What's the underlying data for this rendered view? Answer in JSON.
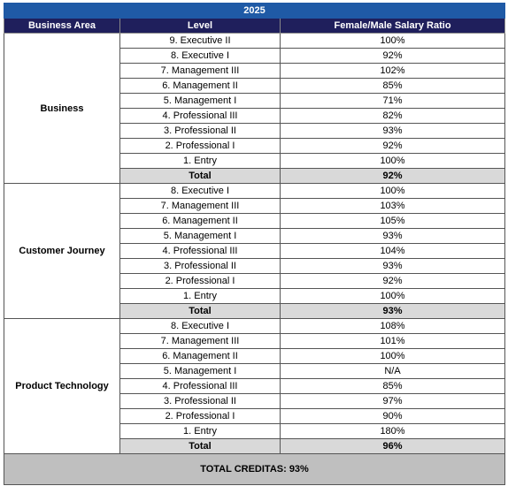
{
  "title": "2025",
  "headers": [
    "Business Area",
    "Level",
    "Female/Male Salary Ratio"
  ],
  "groups": [
    {
      "area": "Business",
      "rows": [
        [
          "9. Executive II",
          "100%"
        ],
        [
          "8. Executive I",
          "92%"
        ],
        [
          "7. Management III",
          "102%"
        ],
        [
          "6. Management II",
          "85%"
        ],
        [
          "5. Management I",
          "71%"
        ],
        [
          "4. Professional III",
          "82%"
        ],
        [
          "3. Professional II",
          "93%"
        ],
        [
          "2. Professional I",
          "92%"
        ],
        [
          "1. Entry",
          "100%"
        ]
      ],
      "total": [
        "Total",
        "92%"
      ]
    },
    {
      "area": "Customer Journey",
      "rows": [
        [
          "8. Executive I",
          "100%"
        ],
        [
          "7. Management III",
          "103%"
        ],
        [
          "6. Management II",
          "105%"
        ],
        [
          "5. Management I",
          "93%"
        ],
        [
          "4. Professional III",
          "104%"
        ],
        [
          "3. Professional II",
          "93%"
        ],
        [
          "2. Professional I",
          "92%"
        ],
        [
          "1. Entry",
          "100%"
        ]
      ],
      "total": [
        "Total",
        "93%"
      ]
    },
    {
      "area": "Product Technology",
      "rows": [
        [
          "8. Executive I",
          "108%"
        ],
        [
          "7. Management III",
          "101%"
        ],
        [
          "6. Management II",
          "100%"
        ],
        [
          "5. Management I",
          "N/A"
        ],
        [
          "4. Professional III",
          "85%"
        ],
        [
          "3. Professional II",
          "97%"
        ],
        [
          "2. Professional I",
          "90%"
        ],
        [
          "1. Entry",
          "180%"
        ]
      ],
      "total": [
        "Total",
        "96%"
      ]
    }
  ],
  "footer": "TOTAL CREDITAS: 93%"
}
